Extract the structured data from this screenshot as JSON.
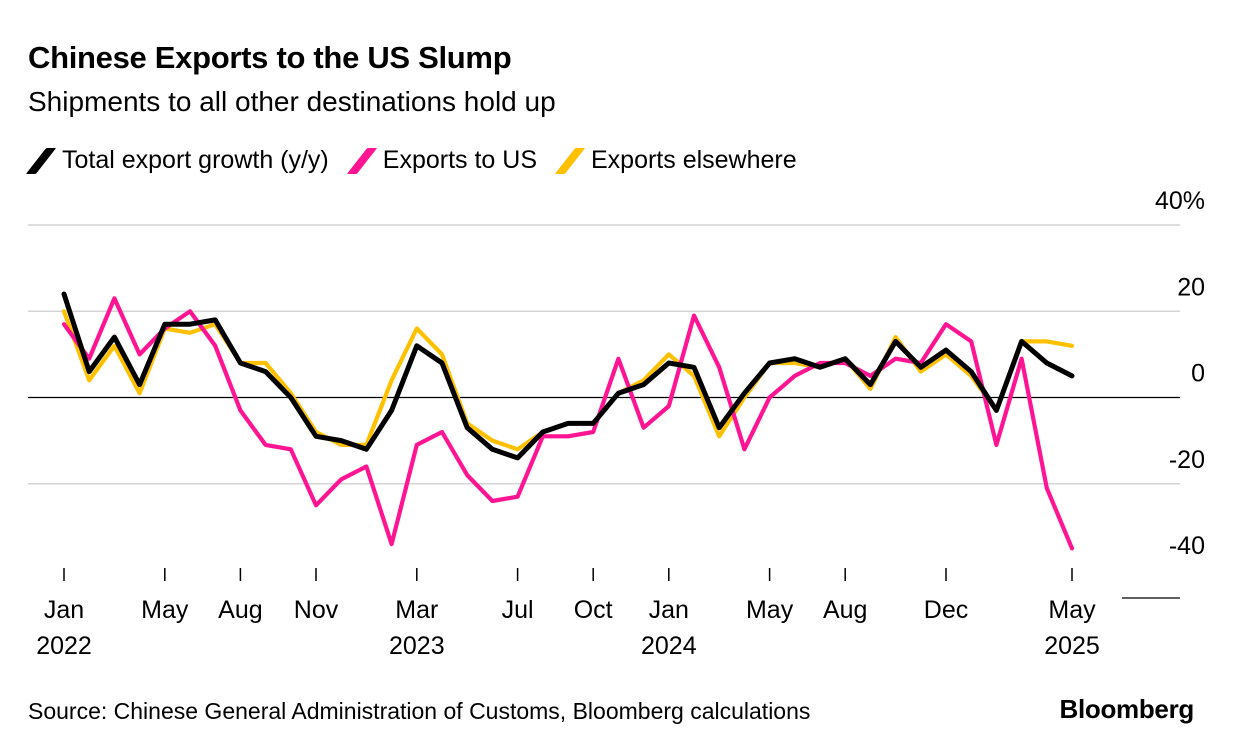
{
  "title": "Chinese Exports to the US Slump",
  "subtitle": "Shipments to all other destinations hold up",
  "source": "Source: Chinese General Administration of Customs, Bloomberg calculations",
  "brand": "Bloomberg",
  "legend_items": [
    {
      "label": "Total export growth (y/y)",
      "color": "#000000"
    },
    {
      "label": "Exports to US",
      "color": "#ff1493"
    },
    {
      "label": "Exports elsewhere",
      "color": "#ffc000"
    }
  ],
  "chart_data": {
    "type": "line",
    "x": [
      "2022-01",
      "2022-02",
      "2022-03",
      "2022-04",
      "2022-05",
      "2022-06",
      "2022-07",
      "2022-08",
      "2022-09",
      "2022-10",
      "2022-11",
      "2022-12",
      "2023-01",
      "2023-02",
      "2023-03",
      "2023-04",
      "2023-05",
      "2023-06",
      "2023-07",
      "2023-08",
      "2023-09",
      "2023-10",
      "2023-11",
      "2023-12",
      "2024-01",
      "2024-02",
      "2024-03",
      "2024-04",
      "2024-05",
      "2024-06",
      "2024-07",
      "2024-08",
      "2024-09",
      "2024-10",
      "2024-11",
      "2024-12",
      "2025-01",
      "2025-02",
      "2025-03",
      "2025-04",
      "2025-05"
    ],
    "x_ticks": [
      {
        "date": "2022-01",
        "label": "Jan",
        "year": "2022"
      },
      {
        "date": "2022-05",
        "label": "May",
        "year": ""
      },
      {
        "date": "2022-08",
        "label": "Aug",
        "year": ""
      },
      {
        "date": "2022-11",
        "label": "Nov",
        "year": ""
      },
      {
        "date": "2023-03",
        "label": "Mar",
        "year": "2023"
      },
      {
        "date": "2023-07",
        "label": "Jul",
        "year": ""
      },
      {
        "date": "2023-10",
        "label": "Oct",
        "year": ""
      },
      {
        "date": "2024-01",
        "label": "Jan",
        "year": "2024"
      },
      {
        "date": "2024-05",
        "label": "May",
        "year": ""
      },
      {
        "date": "2024-08",
        "label": "Aug",
        "year": ""
      },
      {
        "date": "2024-12",
        "label": "Dec",
        "year": ""
      },
      {
        "date": "2025-05",
        "label": "May",
        "year": "2025"
      }
    ],
    "y_ticks": [
      {
        "value": 40,
        "label": "40%"
      },
      {
        "value": 20,
        "label": "20"
      },
      {
        "value": 0,
        "label": "0"
      },
      {
        "value": -20,
        "label": "-20"
      },
      {
        "value": -40,
        "label": "-40"
      }
    ],
    "ylim": [
      -40,
      40
    ],
    "series": [
      {
        "name": "Exports elsewhere",
        "color": "#ffc000",
        "values": [
          20,
          4,
          12,
          1,
          16,
          15,
          17,
          8,
          8,
          1,
          -8,
          -11,
          -11,
          4,
          16,
          10,
          -6,
          -10,
          -12,
          -8,
          -6,
          -6,
          1,
          4,
          10,
          5,
          -9,
          0,
          8,
          8,
          7,
          9,
          2,
          14,
          6,
          10,
          5,
          -3,
          13,
          13,
          12
        ]
      },
      {
        "name": "Exports to US",
        "color": "#ff1493",
        "values": [
          17,
          9,
          23,
          10,
          16,
          20,
          12,
          -3,
          -11,
          -12,
          -25,
          -19,
          -16,
          -34,
          -11,
          -8,
          -18,
          -24,
          -23,
          -9,
          -9,
          -8,
          9,
          -7,
          -2,
          19,
          7,
          -12,
          0,
          5,
          8,
          8,
          5,
          9,
          8,
          17,
          13,
          -11,
          9,
          -21,
          -35
        ]
      },
      {
        "name": "Total export growth (y/y)",
        "color": "#000000",
        "values": [
          24,
          6,
          14,
          3,
          17,
          17,
          18,
          8,
          6,
          0,
          -9,
          -10,
          -12,
          -3,
          12,
          8,
          -7,
          -12,
          -14,
          -8,
          -6,
          -6,
          1,
          3,
          8,
          7,
          -7,
          1,
          8,
          9,
          7,
          9,
          3,
          13,
          7,
          11,
          6,
          -3,
          13,
          8,
          5
        ]
      }
    ]
  }
}
